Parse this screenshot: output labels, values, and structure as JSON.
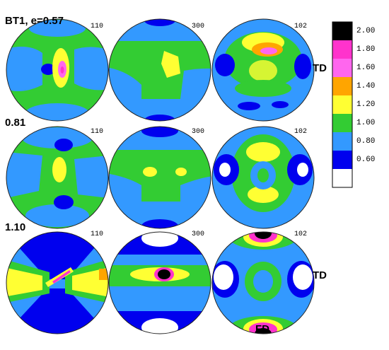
{
  "row_labels": [
    "BT1, e=0.57",
    "0.81",
    "1.10"
  ],
  "plane_labels": [
    "110",
    "300",
    "102"
  ],
  "direction_labels": {
    "td": "TD",
    "fd": "FD"
  },
  "legend": {
    "ticks": [
      "2.00",
      "1.80",
      "1.60",
      "1.40",
      "1.20",
      "1.00",
      "0.80",
      "0.60"
    ],
    "colors": [
      "#000000",
      "#ff33cc",
      "#ff66ee",
      "#ffa500",
      "#ffff33",
      "#33cc33",
      "#3399ff",
      "#0000ee",
      "#ffffff"
    ]
  },
  "palette": {
    "green": "#33cc33",
    "lightblue": "#3399ff",
    "blue": "#0000ee",
    "yellow": "#ffff33",
    "orange": "#ffa500",
    "magenta": "#ff33cc",
    "black": "#000000",
    "white": "#ffffff"
  }
}
